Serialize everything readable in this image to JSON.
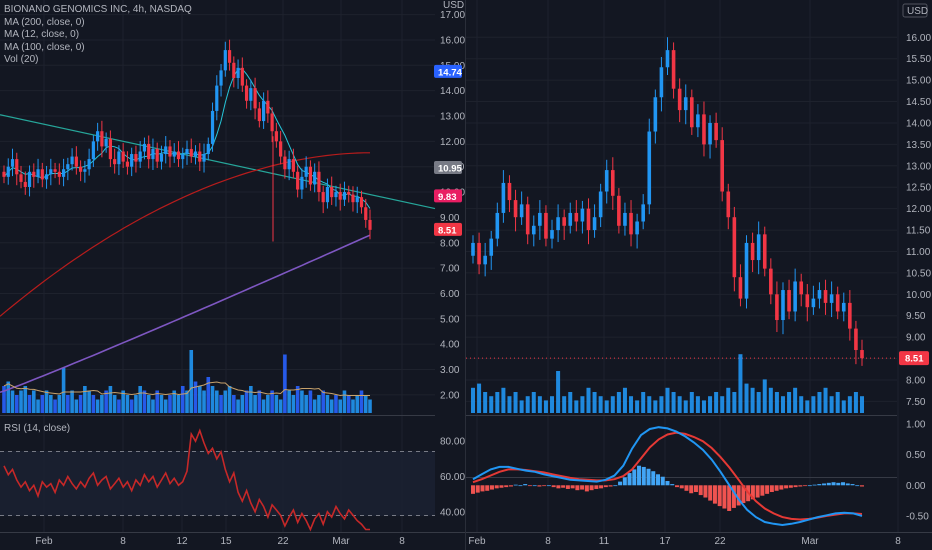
{
  "left_panel": {
    "legend": {
      "title": "BIONANO GENOMICS INC, 4h, NASDAQ",
      "ma200": "MA (200, close, 0)",
      "ma12": "MA (12, close, 0)",
      "ma100": "MA (100, close, 0)",
      "vol": "Vol (20)"
    },
    "rsi_label": "RSI (14, close)",
    "currency": "USD",
    "x_ticks": [
      "Feb",
      "8",
      "12",
      "15",
      "22",
      "Mar",
      "8"
    ],
    "price_ticks": [
      "17.00",
      "16.00",
      "15.00",
      "14.00",
      "13.00",
      "12.00",
      "11.00",
      "10.00",
      "9.00",
      "8.00",
      "7.00",
      "6.00",
      "5.00",
      "4.00",
      "3.00",
      "2.00"
    ],
    "badges": [
      {
        "text": "14.74",
        "color": "#2962ff",
        "value": 14.74
      },
      {
        "text": "10.95",
        "color": "#787b86",
        "value": 10.95
      },
      {
        "text": "9.83",
        "color": "#e91e63",
        "value": 9.83
      },
      {
        "text": "8.51",
        "color": "#f23645",
        "value": 8.51
      }
    ],
    "rsi_ticks": [
      "80.00",
      "60.00",
      "40.00"
    ]
  },
  "right_panel": {
    "currency": "USD",
    "x_ticks": [
      "Feb",
      "8",
      "11",
      "17",
      "22",
      "Mar",
      "8"
    ],
    "price_ticks": [
      "16.00",
      "15.50",
      "15.00",
      "14.50",
      "14.00",
      "13.50",
      "13.00",
      "12.50",
      "12.00",
      "11.50",
      "11.00",
      "10.50",
      "10.00",
      "9.50",
      "9.00",
      "8.50",
      "8.00",
      "7.50"
    ],
    "last_badge": {
      "text": "8.51",
      "color": "#f23645",
      "value": 8.51
    },
    "macd_ticks": [
      "1.00",
      "0.50",
      "0.00",
      "-0.50"
    ]
  },
  "chart_data": [
    {
      "type": "candlestick",
      "title": "BIONANO GENOMICS INC, 4h, NASDAQ",
      "ylim": [
        1.6,
        17.3
      ],
      "close_series": [
        10.6,
        11.0,
        11.3,
        10.7,
        10.4,
        10.2,
        10.8,
        10.6,
        10.9,
        10.5,
        10.7,
        10.9,
        10.8,
        10.6,
        10.9,
        11.1,
        11.4,
        11.0,
        10.8,
        10.9,
        11.3,
        12.0,
        12.4,
        11.8,
        12.1,
        11.3,
        11.1,
        11.6,
        11.2,
        11.0,
        11.5,
        11.2,
        11.6,
        11.9,
        11.3,
        11.7,
        11.2,
        11.5,
        11.8,
        11.4,
        11.6,
        11.3,
        11.5,
        11.7,
        11.4,
        11.6,
        11.2,
        11.5,
        11.9,
        13.2,
        14.2,
        14.8,
        15.6,
        15.1,
        14.5,
        14.9,
        14.2,
        13.6,
        14.1,
        13.3,
        12.8,
        13.6,
        13.1,
        12.4,
        12.0,
        11.4,
        10.9,
        11.3,
        10.8,
        10.1,
        10.6,
        11.0,
        10.3,
        10.8,
        10.0,
        9.6,
        10.2,
        9.8,
        10.0,
        9.7,
        10.0,
        9.9,
        9.6,
        9.8,
        9.4,
        8.9,
        8.51
      ],
      "ma12_end": 9.83,
      "ma100_end": 10.95,
      "ma200_end": 8.3,
      "volume_relative": [
        0.6,
        0.7,
        0.5,
        0.4,
        0.5,
        0.6,
        0.4,
        0.5,
        0.3,
        0.4,
        0.5,
        0.4,
        0.3,
        0.4,
        1.0,
        0.4,
        0.5,
        0.3,
        0.4,
        0.6,
        0.5,
        0.4,
        0.3,
        0.4,
        0.5,
        0.6,
        0.4,
        0.3,
        0.5,
        0.4,
        0.3,
        0.4,
        0.6,
        0.5,
        0.4,
        0.3,
        0.5,
        0.4,
        0.3,
        0.4,
        0.5,
        0.4,
        0.6,
        0.5,
        1.4,
        0.7,
        0.6,
        0.5,
        0.8,
        0.6,
        0.5,
        0.4,
        0.5,
        0.6,
        0.4,
        0.3,
        0.4,
        0.5,
        0.6,
        0.4,
        0.5,
        0.3,
        0.4,
        0.5,
        0.4,
        0.3,
        1.3,
        0.5,
        0.4,
        0.6,
        0.5,
        0.4,
        0.5,
        0.3,
        0.4,
        0.5,
        0.4,
        0.3,
        0.4,
        0.3,
        0.5,
        0.4,
        0.3,
        0.4,
        0.5,
        0.4,
        0.3
      ]
    },
    {
      "type": "line",
      "name": "RSI (14, close)",
      "ylim": [
        28,
        92
      ],
      "levels": [
        70,
        30
      ],
      "values": [
        66,
        61,
        64,
        58,
        54,
        57,
        52,
        55,
        49,
        57,
        54,
        56,
        51,
        58,
        55,
        60,
        56,
        53,
        57,
        54,
        59,
        62,
        55,
        58,
        60,
        53,
        56,
        59,
        54,
        57,
        52,
        58,
        55,
        61,
        57,
        60,
        54,
        58,
        62,
        56,
        59,
        55,
        57,
        63,
        84,
        80,
        86,
        79,
        73,
        76,
        70,
        74,
        64,
        57,
        62,
        51,
        46,
        52,
        45,
        40,
        47,
        43,
        37,
        44,
        41,
        38,
        32,
        37,
        41,
        34,
        39,
        35,
        30,
        36,
        39,
        33,
        40,
        37,
        43,
        39,
        36,
        41,
        38,
        35,
        33,
        30,
        30
      ]
    },
    {
      "type": "candlestick",
      "ylim": [
        7.3,
        16.45
      ],
      "close_series": [
        11.2,
        10.7,
        10.9,
        11.3,
        11.9,
        12.6,
        12.2,
        11.8,
        12.1,
        11.4,
        11.6,
        11.9,
        11.3,
        11.5,
        11.8,
        11.6,
        11.9,
        11.7,
        12.0,
        11.5,
        11.8,
        12.4,
        12.9,
        12.3,
        11.6,
        11.9,
        11.4,
        11.7,
        12.1,
        13.8,
        14.6,
        15.3,
        15.7,
        14.8,
        14.3,
        14.6,
        13.9,
        14.2,
        13.5,
        14.0,
        13.6,
        12.4,
        11.8,
        10.4,
        9.9,
        11.2,
        10.8,
        11.4,
        10.6,
        10.0,
        9.4,
        10.1,
        9.6,
        10.3,
        10.0,
        9.7,
        9.9,
        10.1,
        9.8,
        10.0,
        9.6,
        9.8,
        9.2,
        8.7,
        8.51
      ],
      "last": 8.51
    },
    {
      "type": "bar",
      "name": "MACD",
      "ylim": [
        -0.78,
        1.1
      ],
      "histogram": [
        -0.14,
        -0.12,
        -0.1,
        -0.09,
        -0.07,
        -0.05,
        -0.04,
        -0.03,
        -0.02,
        0.01,
        0.0,
        0.02,
        -0.01,
        0.0,
        -0.02,
        -0.01,
        0.0,
        -0.03,
        -0.05,
        -0.04,
        -0.06,
        -0.05,
        -0.08,
        -0.07,
        -0.1,
        -0.08,
        -0.06,
        -0.05,
        -0.03,
        -0.02,
        0.0,
        0.06,
        0.13,
        0.2,
        0.26,
        0.32,
        0.3,
        0.27,
        0.23,
        0.18,
        0.14,
        0.07,
        0.02,
        -0.03,
        -0.05,
        -0.09,
        -0.13,
        -0.11,
        -0.16,
        -0.2,
        -0.25,
        -0.3,
        -0.34,
        -0.38,
        -0.42,
        -0.37,
        -0.33,
        -0.29,
        -0.26,
        -0.23,
        -0.2,
        -0.17,
        -0.14,
        -0.11,
        -0.09,
        -0.07,
        -0.05,
        -0.04,
        -0.03,
        -0.02,
        -0.01,
        0.0,
        0.01,
        0.02,
        0.03,
        0.04,
        0.05,
        0.04,
        0.05,
        0.03,
        0.02,
        0.0,
        -0.02
      ],
      "macd_line": [
        0.1,
        0.18,
        0.26,
        0.3,
        0.3,
        0.27,
        0.24,
        0.22,
        0.18,
        0.15,
        0.12,
        0.09,
        0.08,
        0.07,
        0.06,
        0.09,
        0.16,
        0.32,
        0.6,
        0.82,
        0.92,
        0.95,
        0.93,
        0.88,
        0.8,
        0.7,
        0.58,
        0.42,
        0.22,
        0.0,
        -0.22,
        -0.4,
        -0.52,
        -0.6,
        -0.63,
        -0.65,
        -0.63,
        -0.6,
        -0.56,
        -0.52,
        -0.49,
        -0.46,
        -0.45,
        -0.46,
        -0.5
      ],
      "signal_line": [
        0.05,
        0.1,
        0.16,
        0.22,
        0.26,
        0.26,
        0.25,
        0.23,
        0.21,
        0.18,
        0.15,
        0.12,
        0.1,
        0.09,
        0.08,
        0.08,
        0.1,
        0.15,
        0.26,
        0.44,
        0.62,
        0.75,
        0.83,
        0.86,
        0.84,
        0.79,
        0.72,
        0.61,
        0.46,
        0.29,
        0.1,
        -0.1,
        -0.26,
        -0.38,
        -0.46,
        -0.52,
        -0.55,
        -0.56,
        -0.55,
        -0.53,
        -0.5,
        -0.48,
        -0.46,
        -0.46,
        -0.47
      ]
    }
  ]
}
